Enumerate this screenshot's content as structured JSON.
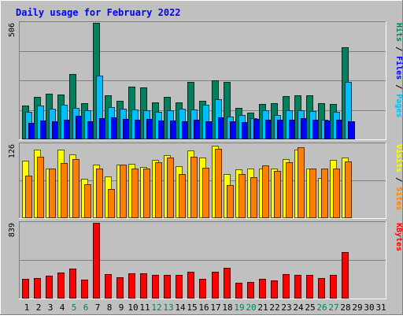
{
  "chart_data": {
    "type": "bar",
    "title": "Daily usage for February 2022",
    "days": [
      "1",
      "2",
      "3",
      "4",
      "5",
      "6",
      "7",
      "8",
      "9",
      "10",
      "11",
      "12",
      "13",
      "14",
      "15",
      "16",
      "17",
      "18",
      "19",
      "20",
      "21",
      "22",
      "23",
      "24",
      "25",
      "26",
      "27",
      "28",
      "29",
      "30",
      "31"
    ],
    "weekend_days": [
      5,
      6,
      12,
      13,
      19,
      20,
      26,
      27
    ],
    "panels": [
      {
        "id": "hits-files-pages",
        "ymax_label": "506",
        "ymax": 506,
        "series": [
          {
            "name": "Hits",
            "color": "#00805c",
            "values": [
              148,
              185,
              200,
              196,
              285,
              158,
              506,
              190,
              166,
              230,
              225,
              162,
              185,
              162,
              248,
              168,
              258,
              250,
              138,
              116,
              155,
              157,
              188,
              190,
              190,
              157,
              155,
              400,
              0,
              0,
              0
            ]
          },
          {
            "name": "Files",
            "color": "#00bfff",
            "values": [
              120,
              148,
              135,
              150,
              138,
              126,
              278,
              140,
              133,
              130,
              128,
              118,
              125,
              135,
              130,
              152,
              175,
              100,
              105,
              94,
              125,
              105,
              128,
              128,
              122,
              85,
              118,
              248,
              0,
              0,
              0
            ]
          },
          {
            "name": "Pages",
            "color": "#0000ff",
            "values": [
              72,
              82,
              80,
              86,
              102,
              80,
              91,
              96,
              88,
              84,
              88,
              81,
              83,
              79,
              87,
              80,
              97,
              77,
              76,
              88,
              86,
              84,
              84,
              91,
              87,
              81,
              84,
              80,
              0,
              0,
              0
            ]
          }
        ],
        "labels": [
          "Pages",
          "/",
          "Files",
          "/",
          "Hits"
        ],
        "label_colors": [
          "#00bfff",
          "#000000",
          "#0000ff",
          "#000000",
          "#00805c"
        ]
      },
      {
        "id": "visits-sites",
        "ymax_label": "126",
        "ymax": 126,
        "series": [
          {
            "name": "Visits",
            "color": "#ffff00",
            "values": [
              98,
              116,
              85,
              116,
              108,
              67,
              91,
              71,
              91,
              92,
              87,
              99,
              107,
              88,
              115,
              103,
              123,
              75,
              83,
              85,
              85,
              85,
              100,
              117,
              84,
              68,
              99,
              103,
              0,
              0,
              0
            ]
          },
          {
            "name": "Sites",
            "color": "#ff8000",
            "values": [
              73,
              105,
              84,
              94,
              100,
              58,
              85,
              50,
              91,
              85,
              85,
              95,
              103,
              75,
              105,
              86,
              118,
              56,
              75,
              70,
              90,
              80,
              95,
              120,
              85,
              85,
              85,
              97,
              0,
              0,
              0
            ]
          }
        ],
        "labels": [
          "Sites",
          "/",
          "Visits"
        ],
        "label_colors": [
          "#ff8000",
          "#000000",
          "#ffff00"
        ]
      },
      {
        "id": "kbytes",
        "ymax_label": "839",
        "ymax": 839,
        "series": [
          {
            "name": "KBytes",
            "color": "#ff0000",
            "values": [
              219,
              231,
              251,
              285,
              334,
              208,
              839,
              270,
              238,
              284,
              284,
              266,
              266,
              266,
              298,
              216,
              301,
              342,
              179,
              186,
              219,
              205,
              270,
              261,
              262,
              226,
              259,
              512,
              0,
              0,
              0
            ]
          }
        ],
        "labels": [
          "KBytes"
        ],
        "label_colors": [
          "#ff0000"
        ]
      }
    ]
  }
}
